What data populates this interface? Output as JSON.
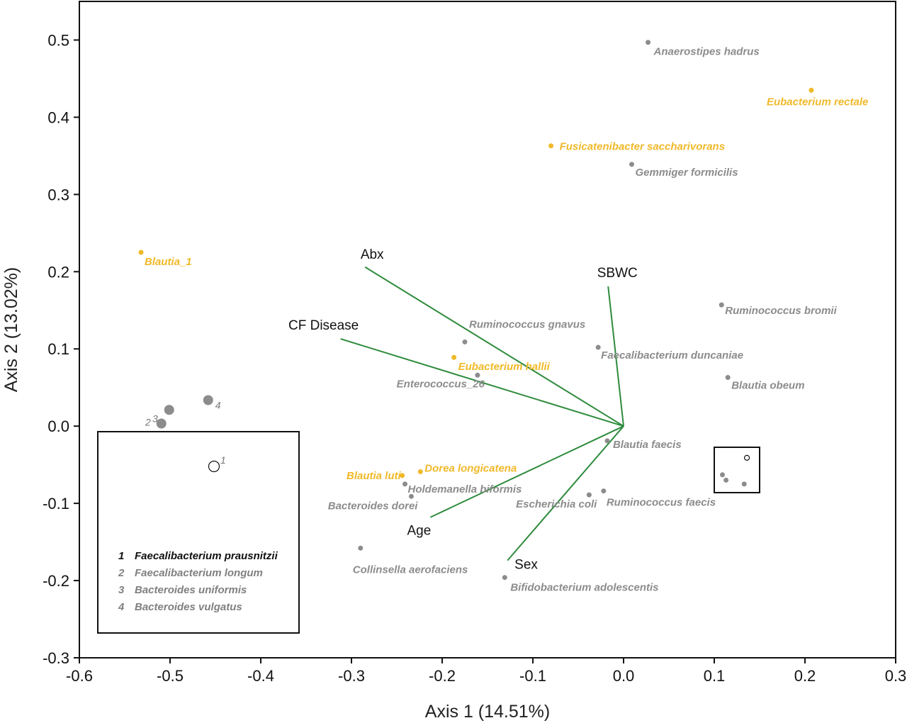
{
  "chart_data": {
    "type": "scatter",
    "xlabel": "Axis 1 (14.51%)",
    "ylabel": "Axis 2 (13.02%)",
    "xlim": [
      -0.6,
      0.3
    ],
    "ylim": [
      -0.3,
      0.55
    ],
    "xticks": [
      "-0.6",
      "-0.5",
      "-0.4",
      "-0.3",
      "-0.2",
      "-0.1",
      "0.0",
      "0.1",
      "0.2",
      "0.3"
    ],
    "yticks": [
      "0.5",
      "0.4",
      "0.3",
      "0.2",
      "0.1",
      "0.0",
      "-0.1",
      "-0.2",
      "-0.3"
    ],
    "colors": {
      "gray": "#8c8c8c",
      "gold": "#f0b929",
      "vector": "#2e8b3c"
    },
    "points": [
      {
        "label": "Anaerostipes hadrus",
        "x": 0.027,
        "y": 0.497,
        "color": "gray"
      },
      {
        "label": "Eubacterium rectale",
        "x": 0.207,
        "y": 0.435,
        "color": "gold"
      },
      {
        "label": "Fusicatenibacter saccharivorans",
        "x": -0.08,
        "y": 0.363,
        "color": "gold"
      },
      {
        "label": "Gemmiger formicilis",
        "x": 0.009,
        "y": 0.339,
        "color": "gray"
      },
      {
        "label": "Blautia_1",
        "x": -0.532,
        "y": 0.225,
        "color": "gold"
      },
      {
        "label": "Ruminococcus bromii",
        "x": 0.108,
        "y": 0.157,
        "color": "gray"
      },
      {
        "label": "Ruminococcus gnavus",
        "x": -0.175,
        "y": 0.109,
        "color": "gray"
      },
      {
        "label": "Faecalibacterium duncaniae",
        "x": -0.028,
        "y": 0.102,
        "color": "gray"
      },
      {
        "label": "Eubacterium hallii",
        "x": -0.187,
        "y": 0.089,
        "color": "gold"
      },
      {
        "label": "Enterococcus_26",
        "x": -0.161,
        "y": 0.066,
        "color": "gray"
      },
      {
        "label": "Blautia obeum",
        "x": 0.115,
        "y": 0.063,
        "color": "gray"
      },
      {
        "label": "Blautia faecis",
        "x": -0.018,
        "y": -0.019,
        "color": "gray"
      },
      {
        "label": "Dorea longicatena",
        "x": -0.224,
        "y": -0.059,
        "color": "gold"
      },
      {
        "label": "Blautia luti",
        "x": -0.244,
        "y": -0.064,
        "color": "gold"
      },
      {
        "label": "Holdemanella biformis",
        "x": -0.241,
        "y": -0.075,
        "color": "gray"
      },
      {
        "label": "Bacteroides dorei",
        "x": -0.234,
        "y": -0.091,
        "color": "gray"
      },
      {
        "label": "Escherichia coli",
        "x": -0.038,
        "y": -0.089,
        "color": "gray"
      },
      {
        "label": "Ruminococcus faecis",
        "x": -0.022,
        "y": -0.084,
        "color": "gray"
      },
      {
        "label": "Collinsella aerofaciens",
        "x": -0.29,
        "y": -0.158,
        "color": "gray"
      },
      {
        "label": "Bifidobacterium adolescentis",
        "x": -0.131,
        "y": -0.196,
        "color": "gray"
      }
    ],
    "cluster_points": [
      {
        "x": 0.136,
        "y": -0.041,
        "open": true
      },
      {
        "x": 0.109,
        "y": -0.063,
        "open": false
      },
      {
        "x": 0.113,
        "y": -0.07,
        "open": false
      },
      {
        "x": 0.133,
        "y": -0.075,
        "open": false
      }
    ],
    "vectors": [
      {
        "label": "Abx",
        "x": -0.285,
        "y": 0.206
      },
      {
        "label": "CF Disease",
        "x": -0.312,
        "y": 0.113
      },
      {
        "label": "SBWC",
        "x": -0.017,
        "y": 0.181
      },
      {
        "label": "Age",
        "x": -0.213,
        "y": -0.118
      },
      {
        "label": "Sex",
        "x": -0.128,
        "y": -0.174
      }
    ],
    "inset": {
      "points": [
        {
          "num": "1",
          "x": 0.136,
          "y": -0.041,
          "open": true
        },
        {
          "num": "2",
          "x": 0.109,
          "y": -0.063,
          "open": false
        },
        {
          "num": "3",
          "x": 0.113,
          "y": -0.07,
          "open": false
        },
        {
          "num": "4",
          "x": 0.133,
          "y": -0.075,
          "open": false
        }
      ],
      "legend": [
        {
          "num": "1",
          "text": "Faecalibacterium prausnitzii",
          "highlight": true
        },
        {
          "num": "2",
          "text": "Faecalibacterium longum",
          "highlight": false
        },
        {
          "num": "3",
          "text": "Bacteroides uniformis",
          "highlight": false
        },
        {
          "num": "4",
          "text": "Bacteroides vulgatus",
          "highlight": false
        }
      ]
    }
  }
}
